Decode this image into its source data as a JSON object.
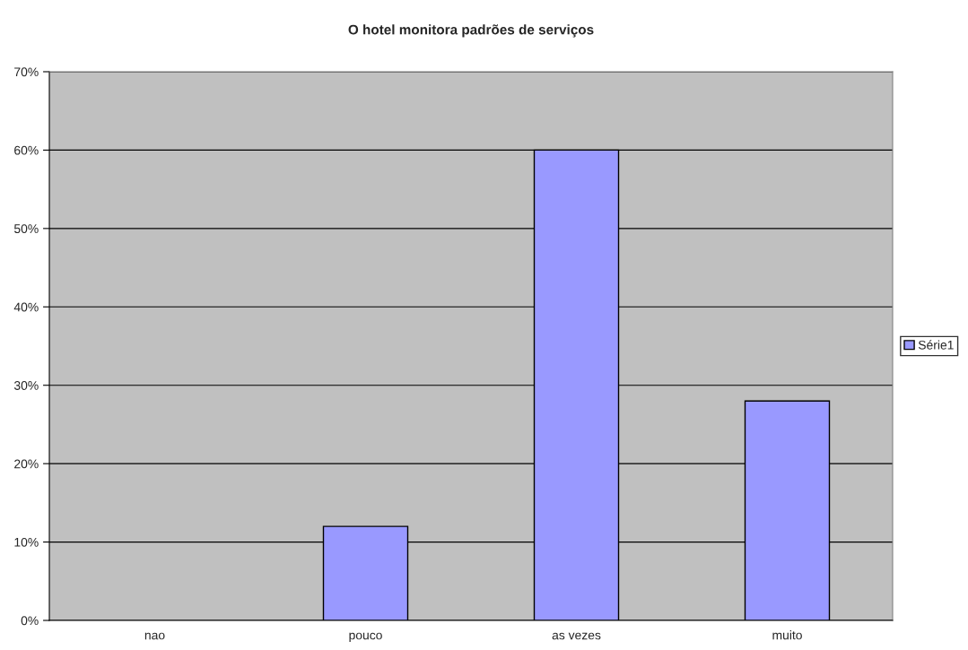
{
  "chart_data": {
    "type": "bar",
    "title": "O hotel monitora padrões de serviços",
    "categories": [
      "nao",
      "pouco",
      "as vezes",
      "muito"
    ],
    "series": [
      {
        "name": "Série1",
        "color": "#9999ff",
        "values": [
          0,
          12,
          60,
          28
        ]
      }
    ],
    "ylim": [
      0,
      70
    ],
    "yticks": [
      {
        "value": 0,
        "label": "0%"
      },
      {
        "value": 10,
        "label": "10%"
      },
      {
        "value": 20,
        "label": "20%"
      },
      {
        "value": 30,
        "label": "30%"
      },
      {
        "value": 40,
        "label": "40%"
      },
      {
        "value": 50,
        "label": "50%"
      },
      {
        "value": 60,
        "label": "60%"
      },
      {
        "value": 70,
        "label": "70%"
      }
    ],
    "grid": "y",
    "legend": "right"
  }
}
